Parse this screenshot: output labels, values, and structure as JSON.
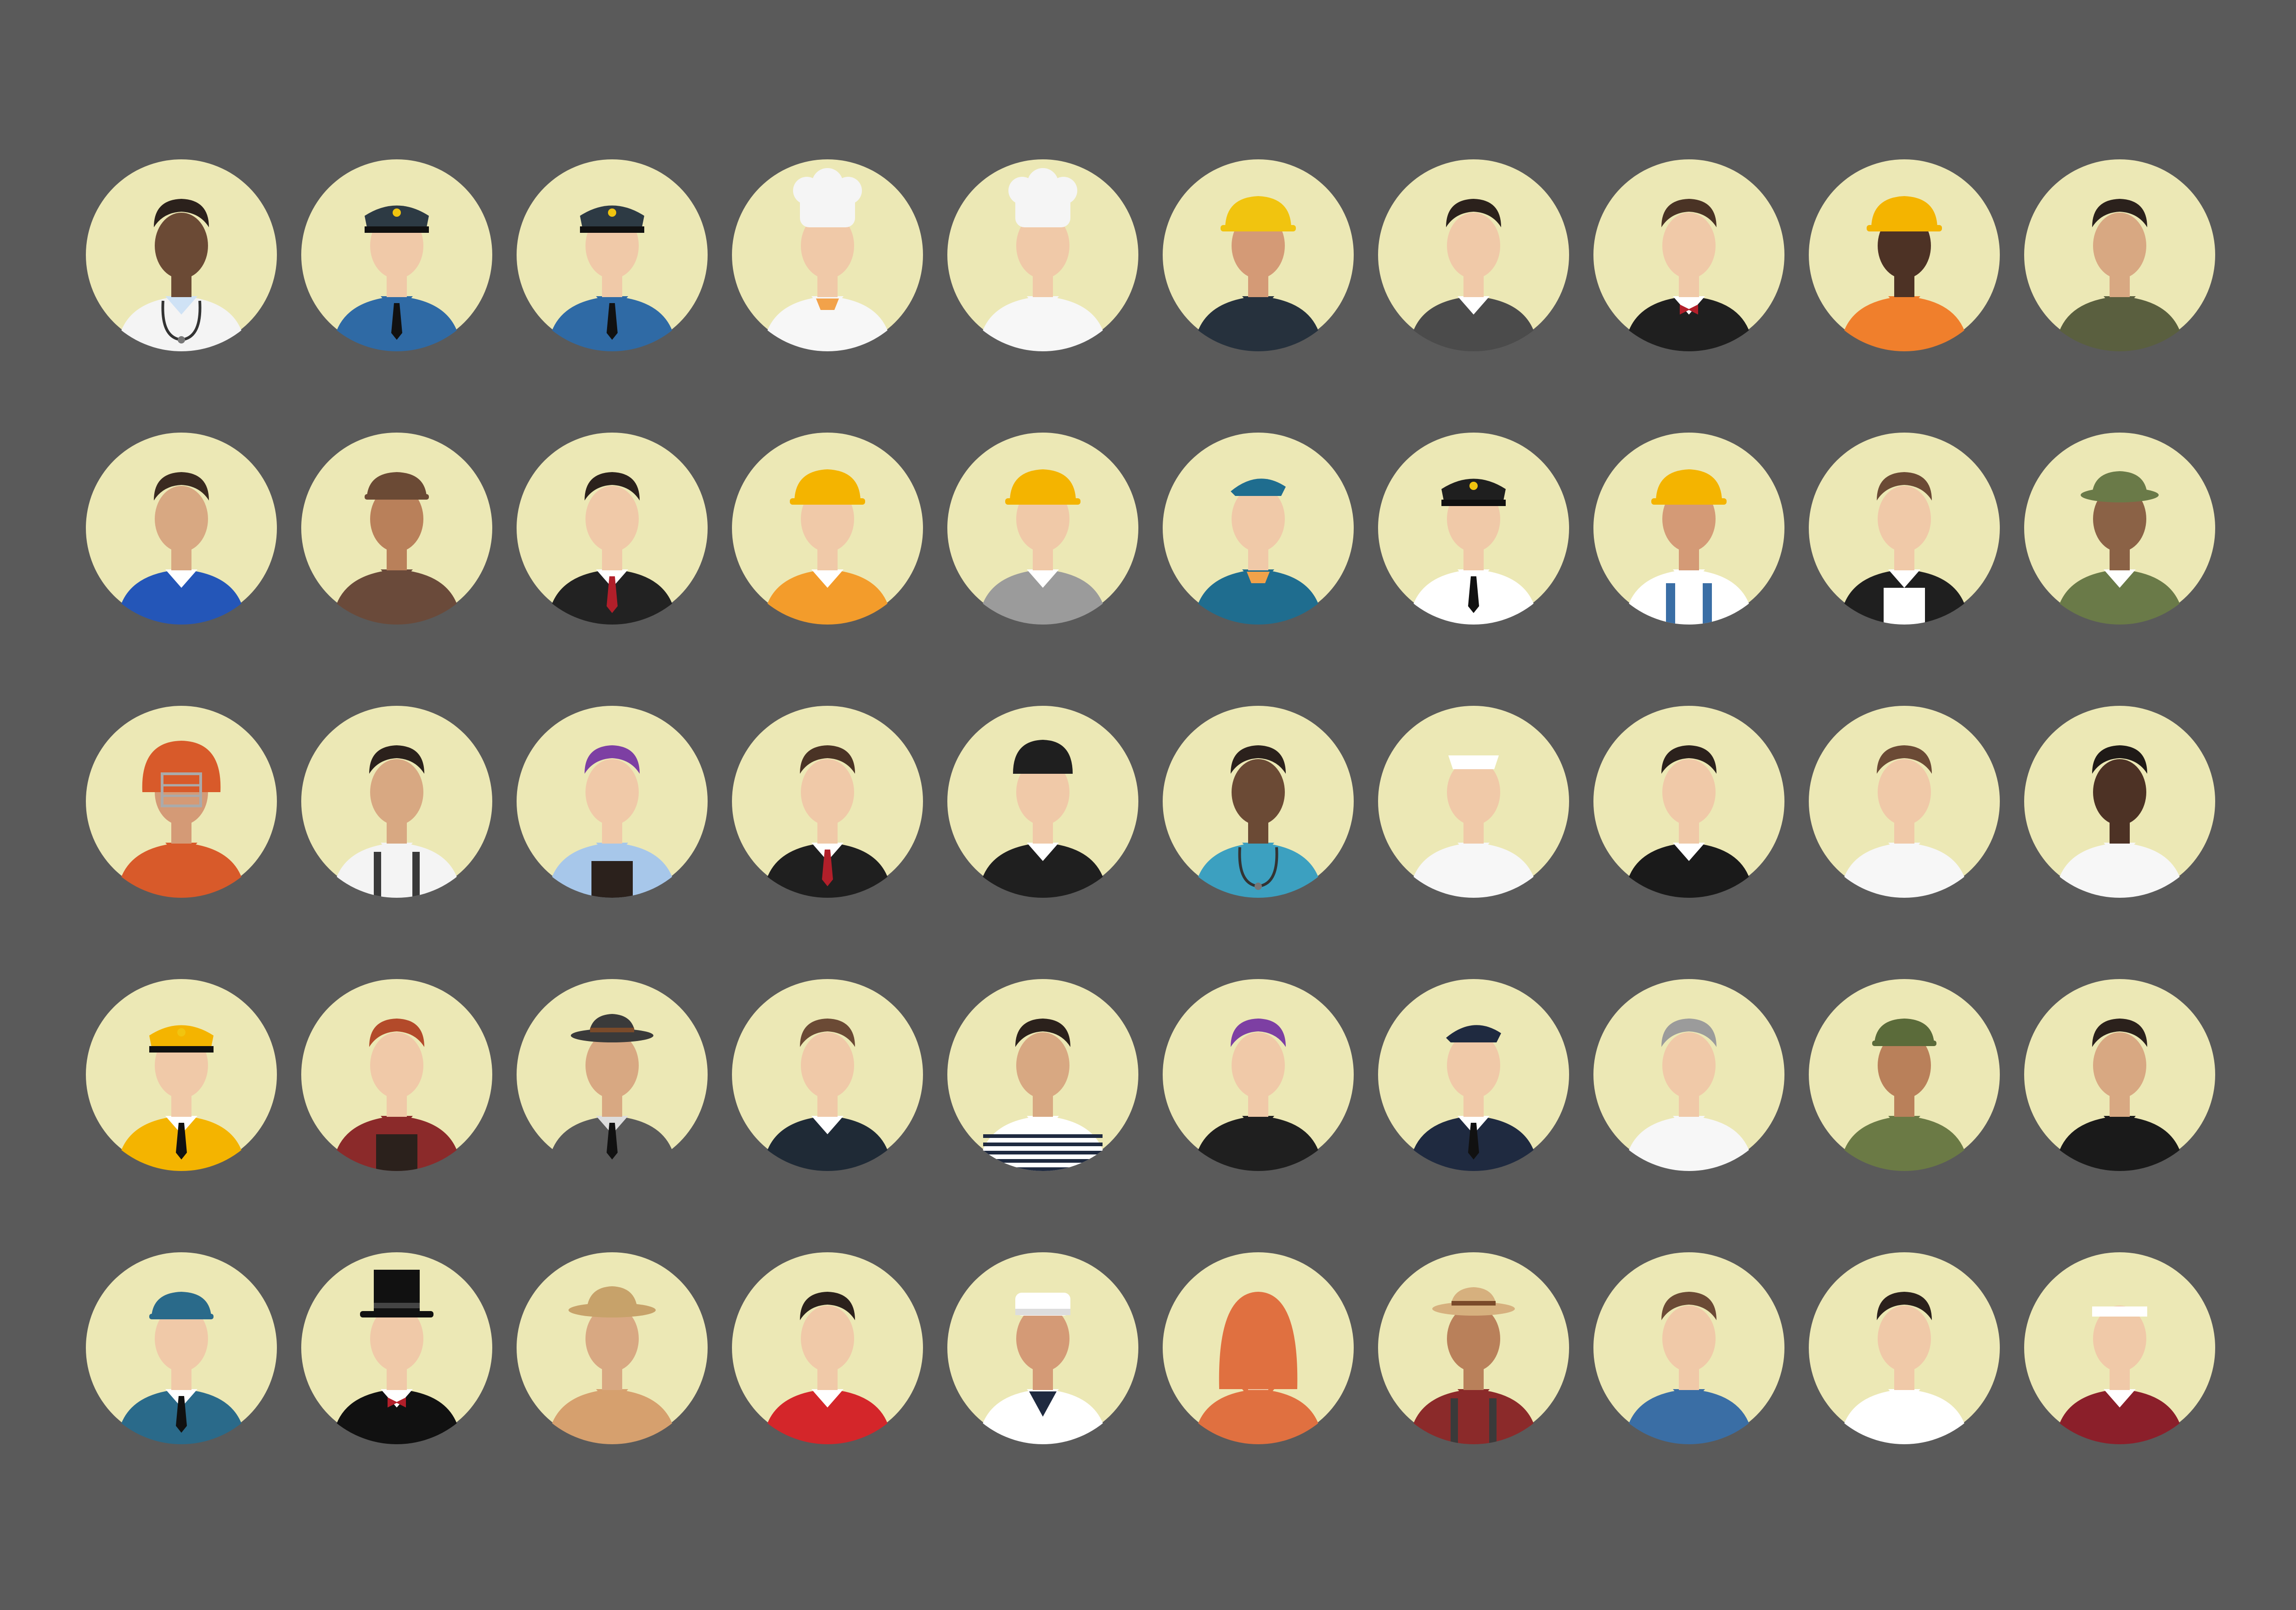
{
  "canvas": {
    "background": "#5a5a5a",
    "circle_fill": "#ece8b5"
  },
  "grid": {
    "rows": 5,
    "columns": 10
  },
  "avatars": [
    {
      "name": "doctor",
      "skin": "#6b4a35",
      "hair": "#2b211c",
      "hat": "none",
      "hat_color": "#000000",
      "outfit": "#f4f4f4",
      "shirt": "#cfe2f5",
      "accessory": "stethoscope"
    },
    {
      "name": "police-officer-male",
      "skin": "#f0c9a8",
      "hair": "#3a2a20",
      "hat": "police",
      "hat_color": "#2d3a44",
      "outfit": "#2f6aa5",
      "shirt": "#2f6aa5",
      "accessory": "tie"
    },
    {
      "name": "police-officer-female",
      "skin": "#f0c9a8",
      "hair": "#4a3325",
      "hat": "police",
      "hat_color": "#2d3a44",
      "outfit": "#2f6aa5",
      "shirt": "#2f6aa5",
      "accessory": "tie"
    },
    {
      "name": "chef-male",
      "skin": "#f0c9a8",
      "hair": "#4a3325",
      "hat": "chef",
      "hat_color": "#f5f5f5",
      "outfit": "#f7f7f7",
      "shirt": "#f7f7f7",
      "accessory": "scarf"
    },
    {
      "name": "chef-female",
      "skin": "#f0c9a8",
      "hair": "#4a3325",
      "hat": "chef",
      "hat_color": "#f5f5f5",
      "outfit": "#f7f7f7",
      "shirt": "#f7f7f7",
      "accessory": "none"
    },
    {
      "name": "firefighter",
      "skin": "#d49a76",
      "hair": "#1f1a17",
      "hat": "helmet",
      "hat_color": "#f1c40f",
      "outfit": "#26313d",
      "shirt": "#26313d",
      "accessory": "none"
    },
    {
      "name": "bartender",
      "skin": "#f0c9a8",
      "hair": "#2b211c",
      "hat": "none",
      "hat_color": "#000000",
      "outfit": "#4b4b4b",
      "shirt": "#ffffff",
      "accessory": "vest"
    },
    {
      "name": "waiter",
      "skin": "#f0c9a8",
      "hair": "#4a3325",
      "hat": "none",
      "hat_color": "#000000",
      "outfit": "#1f1f1f",
      "shirt": "#ffffff",
      "accessory": "bowtie"
    },
    {
      "name": "construction-worker",
      "skin": "#4d3225",
      "hair": "#1f1a17",
      "hat": "helmet",
      "hat_color": "#f4b400",
      "outfit": "#f07f2c",
      "shirt": "#f07f2c",
      "accessory": "none"
    },
    {
      "name": "army-officer",
      "skin": "#d8a882",
      "hair": "#2b211c",
      "hat": "none",
      "hat_color": "#000000",
      "outfit": "#5a5f3f",
      "shirt": "#5a5f3f",
      "accessory": "none"
    },
    {
      "name": "mechanic",
      "skin": "#d8a882",
      "hair": "#3a2a20",
      "hat": "none",
      "hat_color": "#000000",
      "outfit": "#2456b8",
      "shirt": "#ffffff",
      "accessory": "none"
    },
    {
      "name": "farmer",
      "skin": "#b9805a",
      "hair": "#3a2a20",
      "hat": "cap",
      "hat_color": "#6b4a35",
      "outfit": "#6a4a3a",
      "shirt": "#6a4a3a",
      "accessory": "none"
    },
    {
      "name": "businessman",
      "skin": "#f0c9a8",
      "hair": "#2b211c",
      "hat": "none",
      "hat_color": "#000000",
      "outfit": "#222222",
      "shirt": "#ffffff",
      "accessory": "tie-red"
    },
    {
      "name": "engineer",
      "skin": "#f0c9a8",
      "hair": "#2b211c",
      "hat": "helmet",
      "hat_color": "#f4b400",
      "outfit": "#f39c2b",
      "shirt": "#ffffff",
      "accessory": "none"
    },
    {
      "name": "female-engineer",
      "skin": "#f0c9a8",
      "hair": "#1f1a17",
      "hat": "helmet",
      "hat_color": "#f4b400",
      "outfit": "#9b9b9b",
      "shirt": "#ffffff",
      "accessory": "none"
    },
    {
      "name": "flight-attendant",
      "skin": "#f0c9a8",
      "hair": "#1f1a17",
      "hat": "garrison",
      "hat_color": "#1f6d8f",
      "outfit": "#1f6d8f",
      "shirt": "#1f6d8f",
      "accessory": "scarf"
    },
    {
      "name": "pilot",
      "skin": "#f0c9a8",
      "hair": "#2b211c",
      "hat": "police",
      "hat_color": "#1f1f1f",
      "outfit": "#ffffff",
      "shirt": "#ffffff",
      "accessory": "tie"
    },
    {
      "name": "builder",
      "skin": "#d49a76",
      "hair": "#2b211c",
      "hat": "helmet",
      "hat_color": "#f4b400",
      "outfit": "#ffffff",
      "shirt": "#ffffff",
      "accessory": "overalls"
    },
    {
      "name": "maid",
      "skin": "#f0c9a8",
      "hair": "#6b4a35",
      "hat": "none",
      "hat_color": "#000000",
      "outfit": "#1f1f1f",
      "shirt": "#ffffff",
      "accessory": "apron"
    },
    {
      "name": "soldier",
      "skin": "#8b6246",
      "hair": "#2b211c",
      "hat": "bucket",
      "hat_color": "#6a7a48",
      "outfit": "#6a7a48",
      "shirt": "#ffffff",
      "accessory": "none"
    },
    {
      "name": "football-player",
      "skin": "#d49a76",
      "hair": "#2b211c",
      "hat": "football",
      "hat_color": "#d85a2a",
      "outfit": "#d85a2a",
      "shirt": "#d85a2a",
      "accessory": "none"
    },
    {
      "name": "hipster",
      "skin": "#d8a882",
      "hair": "#2b211c",
      "hat": "none",
      "hat_color": "#000000",
      "outfit": "#f4f4f4",
      "shirt": "#f4f4f4",
      "accessory": "suspenders"
    },
    {
      "name": "artist",
      "skin": "#f0c9a8",
      "hair": "#7d3fa3",
      "hat": "none",
      "hat_color": "#000000",
      "outfit": "#a7c7ea",
      "shirt": "#a7c7ea",
      "accessory": "apron-dark"
    },
    {
      "name": "call-center-agent",
      "skin": "#f0c9a8",
      "hair": "#4a3325",
      "hat": "none",
      "hat_color": "#000000",
      "outfit": "#1f1f1f",
      "shirt": "#ffffff",
      "accessory": "tie-red"
    },
    {
      "name": "jockey",
      "skin": "#f0c9a8",
      "hair": "#1f1a17",
      "hat": "jockey",
      "hat_color": "#1f1f1f",
      "outfit": "#1f1f1f",
      "shirt": "#ffffff",
      "accessory": "none"
    },
    {
      "name": "nurse-female",
      "skin": "#6b4a35",
      "hair": "#2b211c",
      "hat": "none",
      "hat_color": "#000000",
      "outfit": "#3ca0c0",
      "shirt": "#3ca0c0",
      "accessory": "stethoscope"
    },
    {
      "name": "nurse",
      "skin": "#f0c9a8",
      "hair": "#4a3325",
      "hat": "nurse",
      "hat_color": "#ffffff",
      "outfit": "#f7f7f7",
      "shirt": "#f7f7f7",
      "accessory": "none"
    },
    {
      "name": "judge",
      "skin": "#f0c9a8",
      "hair": "#2b211c",
      "hat": "none",
      "hat_color": "#000000",
      "outfit": "#1a1a1a",
      "shirt": "#ffffff",
      "accessory": "none"
    },
    {
      "name": "medical-staff-female",
      "skin": "#f0c9a8",
      "hair": "#6b4a35",
      "hat": "none",
      "hat_color": "#000000",
      "outfit": "#f7f7f7",
      "shirt": "#f7f7f7",
      "accessory": "none"
    },
    {
      "name": "medical-staff-male",
      "skin": "#4d3225",
      "hair": "#1f1a17",
      "hat": "none",
      "hat_color": "#000000",
      "outfit": "#f7f7f7",
      "shirt": "#f7f7f7",
      "accessory": "none"
    },
    {
      "name": "captain",
      "skin": "#f0c9a8",
      "hair": "#2b211c",
      "hat": "police",
      "hat_color": "#f4b400",
      "outfit": "#f4b400",
      "shirt": "#ffffff",
      "accessory": "tie"
    },
    {
      "name": "waitress",
      "skin": "#f0c9a8",
      "hair": "#b34a2a",
      "hat": "none",
      "hat_color": "#000000",
      "outfit": "#8b2a2a",
      "shirt": "#8b2a2a",
      "accessory": "apron-dark"
    },
    {
      "name": "detective",
      "skin": "#d8a882",
      "hair": "#2b211c",
      "hat": "fedora",
      "hat_color": "#3a3a3a",
      "outfit": "#5a5a5a",
      "shirt": "#dddddd",
      "accessory": "tie"
    },
    {
      "name": "businesswoman",
      "skin": "#f0c9a8",
      "hair": "#6b4a35",
      "hat": "none",
      "hat_color": "#000000",
      "outfit": "#1f2a36",
      "shirt": "#ffffff",
      "accessory": "none"
    },
    {
      "name": "sailor",
      "skin": "#d8a882",
      "hair": "#2b211c",
      "hat": "none",
      "hat_color": "#000000",
      "outfit": "#ffffff",
      "shirt": "#ffffff",
      "accessory": "stripes"
    },
    {
      "name": "designer",
      "skin": "#f0c9a8",
      "hair": "#7d3fa3",
      "hat": "none",
      "hat_color": "#000000",
      "outfit": "#1f1f1f",
      "shirt": "#1f1f1f",
      "accessory": "none"
    },
    {
      "name": "air-force-officer",
      "skin": "#f0c9a8",
      "hair": "#2b211c",
      "hat": "garrison",
      "hat_color": "#1f2a40",
      "outfit": "#1f2a40",
      "shirt": "#ffffff",
      "accessory": "tie"
    },
    {
      "name": "scientist",
      "skin": "#f0c9a8",
      "hair": "#9b9b9b",
      "hat": "none",
      "hat_color": "#000000",
      "outfit": "#f7f7f7",
      "shirt": "#f7f7f7",
      "accessory": "none"
    },
    {
      "name": "camouflage-soldier",
      "skin": "#b9805a",
      "hair": "#2b211c",
      "hat": "cap",
      "hat_color": "#5b6b3a",
      "outfit": "#6b7a45",
      "shirt": "#6b7a45",
      "accessory": "none"
    },
    {
      "name": "bodybuilder",
      "skin": "#d8a882",
      "hair": "#2b211c",
      "hat": "none",
      "hat_color": "#000000",
      "outfit": "#1a1a1a",
      "shirt": "#1a1a1a",
      "accessory": "none"
    },
    {
      "name": "postman",
      "skin": "#f0c9a8",
      "hair": "#2b211c",
      "hat": "cap",
      "hat_color": "#2a6a8a",
      "outfit": "#2a6a8a",
      "shirt": "#ffffff",
      "accessory": "tie"
    },
    {
      "name": "magician",
      "skin": "#f0c9a8",
      "hair": "#2b211c",
      "hat": "tophat",
      "hat_color": "#111111",
      "outfit": "#111111",
      "shirt": "#ffffff",
      "accessory": "bowtie"
    },
    {
      "name": "explorer",
      "skin": "#d8a882",
      "hair": "#2b211c",
      "hat": "safari",
      "hat_color": "#c7a26a",
      "outfit": "#d6a06e",
      "shirt": "#d6a06e",
      "accessory": "none"
    },
    {
      "name": "cashier",
      "skin": "#f0c9a8",
      "hair": "#2b211c",
      "hat": "none",
      "hat_color": "#000000",
      "outfit": "#d4262a",
      "shirt": "#ffffff",
      "accessory": "none"
    },
    {
      "name": "navy-sailor",
      "skin": "#d49a76",
      "hair": "#2b211c",
      "hat": "sailor",
      "hat_color": "#ffffff",
      "outfit": "#ffffff",
      "shirt": "#ffffff",
      "accessory": "scarf-dark"
    },
    {
      "name": "hijab-woman",
      "skin": "#f0c9a8",
      "hair": "#000000",
      "hat": "hijab",
      "hat_color": "#e07040",
      "outfit": "#e07040",
      "shirt": "#e07040",
      "accessory": "none"
    },
    {
      "name": "gardener",
      "skin": "#b9805a",
      "hair": "#2b211c",
      "hat": "fedora",
      "hat_color": "#d6b07e",
      "outfit": "#8b2a2a",
      "shirt": "#8b2a2a",
      "accessory": "suspenders"
    },
    {
      "name": "teacher",
      "skin": "#f0c9a8",
      "hair": "#6b4a35",
      "hat": "none",
      "hat_color": "#000000",
      "outfit": "#3a6ea5",
      "shirt": "#3a6ea5",
      "accessory": "none"
    },
    {
      "name": "receptionist",
      "skin": "#f0c9a8",
      "hair": "#2b211c",
      "hat": "none",
      "hat_color": "#000000",
      "outfit": "#ffffff",
      "shirt": "#ffffff",
      "accessory": "none"
    },
    {
      "name": "tennis-player",
      "skin": "#f0c9a8",
      "hair": "#2b211c",
      "hat": "headband",
      "hat_color": "#ffffff",
      "outfit": "#8b1f2a",
      "shirt": "#ffffff",
      "accessory": "none"
    }
  ]
}
